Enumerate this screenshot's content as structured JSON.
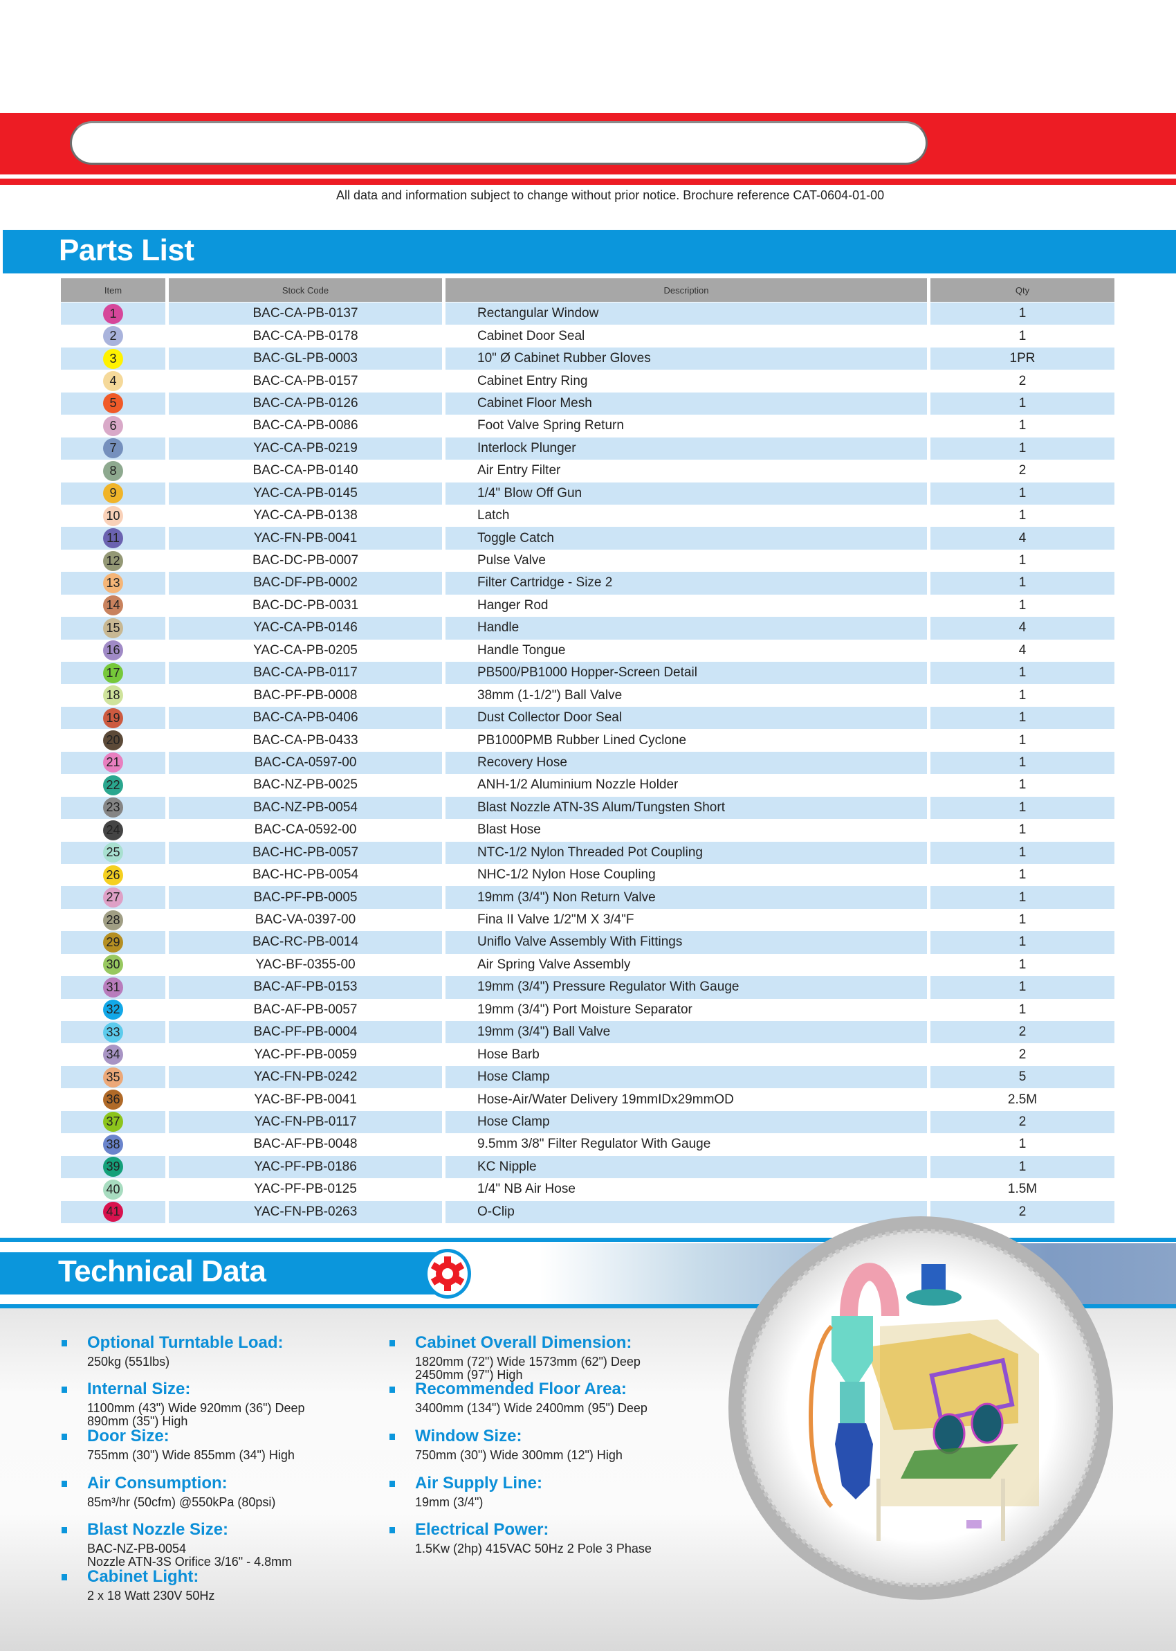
{
  "header": {
    "notice": "All data and information subject to change without prior notice. Brochure reference",
    "brochure_ref": "CAT-0604-01-00"
  },
  "parts_list": {
    "title": "Parts List",
    "columns": [
      "Item",
      "Stock Code",
      "Description",
      "Qty"
    ],
    "rows": [
      {
        "item": "1",
        "code": "BAC-CA-PB-0137",
        "desc": "Rectangular Window",
        "qty": "1",
        "color": "#d6469a"
      },
      {
        "item": "2",
        "code": "BAC-CA-PB-0178",
        "desc": "Cabinet Door Seal",
        "qty": "1",
        "color": "#a9b3dc"
      },
      {
        "item": "3",
        "code": "BAC-GL-PB-0003",
        "desc": "10\" Ø Cabinet Rubber Gloves",
        "qty": "1PR",
        "color": "#fff200"
      },
      {
        "item": "4",
        "code": "BAC-CA-PB-0157",
        "desc": "Cabinet Entry Ring",
        "qty": "2",
        "color": "#f5d99a"
      },
      {
        "item": "5",
        "code": "BAC-CA-PB-0126",
        "desc": "Cabinet Floor Mesh",
        "qty": "1",
        "color": "#f05a28"
      },
      {
        "item": "6",
        "code": "BAC-CA-PB-0086",
        "desc": "Foot Valve Spring Return",
        "qty": "1",
        "color": "#d9a9c8"
      },
      {
        "item": "7",
        "code": "YAC-CA-PB-0219",
        "desc": "Interlock Plunger",
        "qty": "1",
        "color": "#7590bd"
      },
      {
        "item": "8",
        "code": "BAC-CA-PB-0140",
        "desc": "Air Entry Filter",
        "qty": "2",
        "color": "#8ea98f"
      },
      {
        "item": "9",
        "code": "YAC-CA-PB-0145",
        "desc": "1/4\" Blow Off Gun",
        "qty": "1",
        "color": "#f0b429"
      },
      {
        "item": "10",
        "code": "YAC-CA-PB-0138",
        "desc": "Latch",
        "qty": "1",
        "color": "#f9d1b8"
      },
      {
        "item": "11",
        "code": "YAC-FN-PB-0041",
        "desc": "Toggle Catch",
        "qty": "4",
        "color": "#6a62b0"
      },
      {
        "item": "12",
        "code": "BAC-DC-PB-0007",
        "desc": "Pulse Valve",
        "qty": "1",
        "color": "#949875"
      },
      {
        "item": "13",
        "code": "BAC-DF-PB-0002",
        "desc": "Filter Cartridge - Size 2",
        "qty": "1",
        "color": "#f5b577"
      },
      {
        "item": "14",
        "code": "BAC-DC-PB-0031",
        "desc": "Hanger Rod",
        "qty": "1",
        "color": "#c8825e"
      },
      {
        "item": "15",
        "code": "YAC-CA-PB-0146",
        "desc": "Handle",
        "qty": "4",
        "color": "#c8b893"
      },
      {
        "item": "16",
        "code": "YAC-CA-PB-0205",
        "desc": "Handle Tongue",
        "qty": "4",
        "color": "#a08ac6"
      },
      {
        "item": "17",
        "code": "BAC-CA-PB-0117",
        "desc": "PB500/PB1000 Hopper-Screen Detail",
        "qty": "1",
        "color": "#76c83a"
      },
      {
        "item": "18",
        "code": "BAC-PF-PB-0008",
        "desc": "38mm (1-1/2\") Ball Valve",
        "qty": "1",
        "color": "#cfe39c"
      },
      {
        "item": "19",
        "code": "BAC-CA-PB-0406",
        "desc": "Dust Collector Door Seal",
        "qty": "1",
        "color": "#cc5a40"
      },
      {
        "item": "20",
        "code": "BAC-CA-PB-0433",
        "desc": "PB1000PMB Rubber Lined Cyclone",
        "qty": "1",
        "color": "#5c4a38"
      },
      {
        "item": "21",
        "code": "BAC-CA-0597-00",
        "desc": "Recovery Hose",
        "qty": "1",
        "color": "#e87fbf"
      },
      {
        "item": "22",
        "code": "BAC-NZ-PB-0025",
        "desc": "ANH-1/2 Aluminium Nozzle Holder",
        "qty": "1",
        "color": "#2aa68e"
      },
      {
        "item": "23",
        "code": "BAC-NZ-PB-0054",
        "desc": "Blast Nozzle ATN-3S Alum/Tungsten Short",
        "qty": "1",
        "color": "#858585"
      },
      {
        "item": "24",
        "code": "BAC-CA-0592-00",
        "desc": "Blast Hose",
        "qty": "1",
        "color": "#444444"
      },
      {
        "item": "25",
        "code": "BAC-HC-PB-0057",
        "desc": "NTC-1/2 Nylon Threaded Pot Coupling",
        "qty": "1",
        "color": "#a8e0d0"
      },
      {
        "item": "26",
        "code": "BAC-HC-PB-0054",
        "desc": "NHC-1/2 Nylon Hose Coupling",
        "qty": "1",
        "color": "#f5d020"
      },
      {
        "item": "27",
        "code": "BAC-PF-PB-0005",
        "desc": "19mm (3/4\") Non Return Valve",
        "qty": "1",
        "color": "#dea0c6"
      },
      {
        "item": "28",
        "code": "BAC-VA-0397-00",
        "desc": "Fina II Valve 1/2\"M X 3/4\"F",
        "qty": "1",
        "color": "#a09e84"
      },
      {
        "item": "29",
        "code": "BAC-RC-PB-0014",
        "desc": "Uniflo Valve Assembly With Fittings",
        "qty": "1",
        "color": "#b58f22"
      },
      {
        "item": "30",
        "code": "YAC-BF-0355-00",
        "desc": "Air Spring Valve Assembly",
        "qty": "1",
        "color": "#98c860"
      },
      {
        "item": "31",
        "code": "BAC-AF-PB-0153",
        "desc": "19mm (3/4\") Pressure Regulator With Gauge",
        "qty": "1",
        "color": "#b87cbc"
      },
      {
        "item": "32",
        "code": "BAC-AF-PB-0057",
        "desc": "19mm (3/4\") Port Moisture Separator",
        "qty": "1",
        "color": "#12a8e8"
      },
      {
        "item": "33",
        "code": "BAC-PF-PB-0004",
        "desc": "19mm (3/4\") Ball Valve",
        "qty": "2",
        "color": "#5ccbec"
      },
      {
        "item": "34",
        "code": "YAC-PF-PB-0059",
        "desc": "Hose Barb",
        "qty": "2",
        "color": "#a894c4"
      },
      {
        "item": "35",
        "code": "YAC-FN-PB-0242",
        "desc": "Hose Clamp",
        "qty": "5",
        "color": "#eca878"
      },
      {
        "item": "36",
        "code": "YAC-BF-PB-0041",
        "desc": "Hose-Air/Water Delivery 19mmIDx29mmOD",
        "qty": "2.5M",
        "color": "#b06a28"
      },
      {
        "item": "37",
        "code": "YAC-FN-PB-0117",
        "desc": "Hose Clamp",
        "qty": "2",
        "color": "#8cc41c"
      },
      {
        "item": "38",
        "code": "BAC-AF-PB-0048",
        "desc": "9.5mm 3/8\" Filter Regulator With Gauge",
        "qty": "1",
        "color": "#6a84cc"
      },
      {
        "item": "39",
        "code": "YAC-PF-PB-0186",
        "desc": "KC Nipple",
        "qty": "1",
        "color": "#14a07a"
      },
      {
        "item": "40",
        "code": "YAC-PF-PB-0125",
        "desc": "1/4\" NB Air Hose",
        "qty": "1.5M",
        "color": "#a8dcc0"
      },
      {
        "item": "41",
        "code": "YAC-FN-PB-0263",
        "desc": "O-Clip",
        "qty": "2",
        "color": "#d8124e"
      }
    ]
  },
  "technical_data": {
    "title": "Technical Data",
    "icon": "gear-icon",
    "left": [
      {
        "title": "Optional Turntable Load:",
        "value": "250kg (551lbs)"
      },
      {
        "title": "Internal Size:",
        "value": "1100mm (43\") Wide 920mm (36\") Deep\n890mm (35\") High"
      },
      {
        "title": "Door Size:",
        "value": "755mm (30\") Wide 855mm (34\") High"
      },
      {
        "title": "Air Consumption:",
        "value": "85m³/hr (50cfm) @550kPa (80psi)"
      },
      {
        "title": "Blast Nozzle Size:",
        "value": "BAC-NZ-PB-0054\nNozzle ATN-3S Orifice 3/16\" - 4.8mm"
      },
      {
        "title": "Cabinet Light:",
        "value": "2 x 18 Watt 230V 50Hz"
      }
    ],
    "right": [
      {
        "title": "Cabinet Overall Dimension:",
        "value": "1820mm (72\") Wide 1573mm (62\") Deep\n2450mm (97\") High"
      },
      {
        "title": "Recommended Floor Area:",
        "value": "3400mm (134\") Wide 2400mm (95\") Deep"
      },
      {
        "title": "Window Size:",
        "value": "750mm (30\") Wide 300mm (12\") High"
      },
      {
        "title": "Air Supply Line:",
        "value": "19mm (3/4\")"
      },
      {
        "title": "Electrical Power:",
        "value": "1.5Kw (2hp) 415VAC 50Hz 2 Pole 3 Phase"
      }
    ]
  },
  "colors": {
    "red": "#ed1c24",
    "blue": "#0b96dc",
    "row_blue": "#cce4f6",
    "header_grey": "#a7a7a7"
  }
}
